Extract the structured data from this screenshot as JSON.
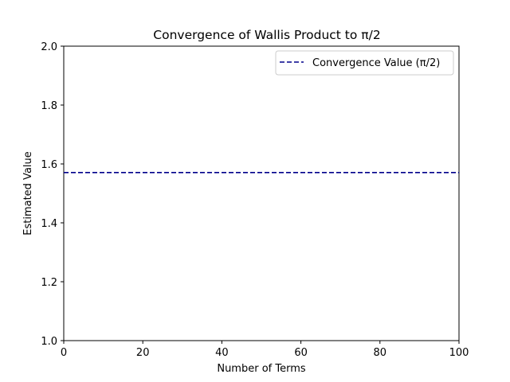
{
  "chart_data": {
    "type": "line",
    "title": "Convergence of Wallis Product to π/2",
    "xlabel": "Number of Terms",
    "ylabel": "Estimated Value",
    "xlim": [
      0,
      100
    ],
    "ylim": [
      1.0,
      2.0
    ],
    "x_ticks": [
      0,
      20,
      40,
      60,
      80,
      100
    ],
    "x_tick_labels": [
      "0",
      "20",
      "40",
      "60",
      "80",
      "100"
    ],
    "y_ticks": [
      1.0,
      1.2,
      1.4,
      1.6,
      1.8,
      2.0
    ],
    "y_tick_labels": [
      "1.0",
      "1.2",
      "1.4",
      "1.6",
      "1.8",
      "2.0"
    ],
    "grid": false,
    "legend_position": "top-right",
    "series": [
      {
        "name": "Convergence Value (π/2)",
        "kind": "hline",
        "y": 1.5708,
        "color": "#00008b",
        "linestyle": "dashed"
      }
    ]
  }
}
